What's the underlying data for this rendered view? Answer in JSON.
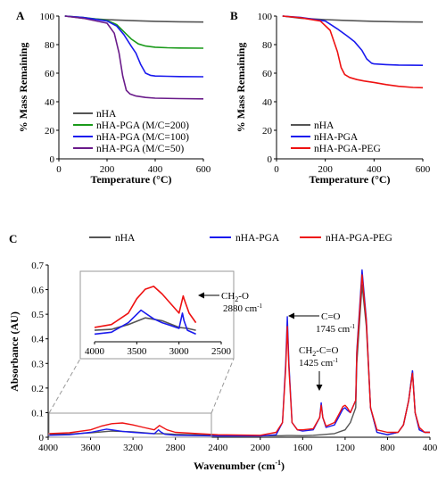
{
  "chart_data": [
    {
      "panel": "A",
      "type": "line",
      "xlabel": "Temperature (°C)",
      "ylabel": "% Mass Remaining",
      "xlim": [
        0,
        600
      ],
      "ylim": [
        0,
        100
      ],
      "xticks": [
        "0",
        "200",
        "400",
        "600"
      ],
      "yticks": [
        "0",
        "20",
        "40",
        "60",
        "80",
        "100"
      ],
      "grid": false,
      "legend": "bottom-left",
      "series": [
        {
          "name": "nHA",
          "color": "#555555",
          "x": [
            25,
            100,
            200,
            300,
            400,
            500,
            600
          ],
          "y": [
            100,
            98.5,
            97.5,
            96.8,
            96.3,
            96,
            95.8
          ]
        },
        {
          "name": "nHA-PGA (M/C=200)",
          "color": "#1a9a1a",
          "x": [
            25,
            100,
            200,
            240,
            270,
            300,
            330,
            360,
            400,
            450,
            500,
            600
          ],
          "y": [
            100,
            99,
            97,
            94,
            89,
            84,
            80.5,
            79,
            78.2,
            77.8,
            77.6,
            77.5
          ]
        },
        {
          "name": "nHA-PGA (M/C=100)",
          "color": "#1a1aee",
          "x": [
            25,
            100,
            200,
            240,
            270,
            300,
            320,
            340,
            360,
            380,
            400,
            450,
            500,
            600
          ],
          "y": [
            100,
            99,
            96.5,
            93,
            87,
            79,
            74,
            66,
            60,
            58.5,
            58,
            57.8,
            57.6,
            57.5
          ]
        },
        {
          "name": "nHA-PGA (M/C=50)",
          "color": "#6a1b8a",
          "x": [
            25,
            100,
            200,
            230,
            250,
            265,
            280,
            295,
            320,
            360,
            400,
            500,
            600
          ],
          "y": [
            100,
            98.5,
            95,
            88,
            74,
            58,
            48,
            45.5,
            44,
            43,
            42.5,
            42.2,
            42
          ]
        }
      ]
    },
    {
      "panel": "B",
      "type": "line",
      "xlabel": "Temperature (°C)",
      "ylabel": "% Mass Remaining",
      "xlim": [
        0,
        600
      ],
      "ylim": [
        0,
        100
      ],
      "xticks": [
        "0",
        "200",
        "400",
        "600"
      ],
      "yticks": [
        "0",
        "20",
        "40",
        "60",
        "80",
        "100"
      ],
      "grid": false,
      "legend": "bottom-left",
      "series": [
        {
          "name": "nHA",
          "color": "#555555",
          "x": [
            25,
            100,
            200,
            300,
            400,
            500,
            600
          ],
          "y": [
            100,
            98.5,
            97.5,
            96.8,
            96.3,
            96,
            95.8
          ]
        },
        {
          "name": "nHA-PGA",
          "color": "#1a1aee",
          "x": [
            25,
            100,
            200,
            250,
            290,
            320,
            350,
            370,
            390,
            400,
            450,
            500,
            600
          ],
          "y": [
            100,
            99,
            96.5,
            91,
            86,
            82,
            76,
            70,
            67,
            66.5,
            66,
            65.7,
            65.5
          ]
        },
        {
          "name": "nHA-PGA-PEG",
          "color": "#ee1111",
          "x": [
            25,
            100,
            180,
            220,
            250,
            265,
            280,
            300,
            330,
            360,
            400,
            450,
            500,
            560,
            600
          ],
          "y": [
            100,
            98.8,
            96.5,
            90,
            75,
            64,
            59,
            57,
            55.5,
            54.5,
            53.5,
            52,
            50.8,
            50,
            49.8
          ]
        }
      ]
    },
    {
      "panel": "C",
      "type": "line",
      "xlabel": "Wavenumber (cm-1)",
      "ylabel": "Absorbance (AU)",
      "xlim": [
        4000,
        400
      ],
      "ylim": [
        0,
        0.7
      ],
      "xticks": [
        "4000",
        "3600",
        "3200",
        "2800",
        "2400",
        "2000",
        "1600",
        "1200",
        "800",
        "400"
      ],
      "yticks": [
        "0",
        "0.1",
        "0.2",
        "0.3",
        "0.4",
        "0.5",
        "0.6",
        "0.7"
      ],
      "grid": false,
      "legend": "top",
      "annotations": {
        "co_label": "C=O",
        "co_value": "1745 cm",
        "ch2co_label": "CH",
        "ch2co_value": "1425 cm",
        "ch2o_label": "CH",
        "ch2o_value": "2880 cm"
      },
      "series": [
        {
          "name": "nHA",
          "color": "#555555",
          "x": [
            4000,
            3800,
            3600,
            3400,
            3200,
            3000,
            2900,
            2800,
            2400,
            2000,
            1800,
            1750,
            1700,
            1600,
            1500,
            1425,
            1300,
            1200,
            1150,
            1100,
            1090,
            1040,
            1000,
            960,
            900,
            800,
            700,
            650,
            600,
            565,
            540,
            500,
            450,
            400
          ],
          "y": [
            0.012,
            0.013,
            0.018,
            0.025,
            0.022,
            0.015,
            0.014,
            0.012,
            0.008,
            0.006,
            0.006,
            0.007,
            0.007,
            0.006,
            0.008,
            0.01,
            0.015,
            0.03,
            0.06,
            0.12,
            0.3,
            0.62,
            0.45,
            0.12,
            0.02,
            0.01,
            0.02,
            0.05,
            0.15,
            0.27,
            0.1,
            0.03,
            0.02,
            0.02
          ]
        },
        {
          "name": "nHA-PGA",
          "color": "#1a1aee",
          "x": [
            4000,
            3800,
            3600,
            3450,
            3400,
            3300,
            3200,
            3100,
            3000,
            2960,
            2940,
            2900,
            2800,
            2400,
            2000,
            1850,
            1790,
            1760,
            1745,
            1730,
            1700,
            1650,
            1600,
            1500,
            1440,
            1425,
            1410,
            1380,
            1300,
            1250,
            1220,
            1200,
            1180,
            1150,
            1100,
            1090,
            1040,
            1000,
            960,
            900,
            800,
            700,
            650,
            600,
            565,
            540,
            500,
            450,
            400
          ],
          "y": [
            0.008,
            0.01,
            0.02,
            0.033,
            0.03,
            0.024,
            0.02,
            0.017,
            0.014,
            0.03,
            0.022,
            0.012,
            0.008,
            0.005,
            0.005,
            0.01,
            0.06,
            0.3,
            0.49,
            0.3,
            0.06,
            0.03,
            0.025,
            0.03,
            0.08,
            0.14,
            0.08,
            0.04,
            0.05,
            0.09,
            0.115,
            0.12,
            0.11,
            0.1,
            0.15,
            0.35,
            0.68,
            0.48,
            0.12,
            0.02,
            0.01,
            0.02,
            0.05,
            0.15,
            0.27,
            0.1,
            0.03,
            0.02,
            0.02
          ]
        },
        {
          "name": "nHA-PGA-PEG",
          "color": "#ee1111",
          "x": [
            4000,
            3800,
            3600,
            3500,
            3400,
            3300,
            3200,
            3100,
            3000,
            2950,
            2940,
            2880,
            2800,
            2400,
            2000,
            1850,
            1790,
            1760,
            1745,
            1730,
            1700,
            1650,
            1600,
            1500,
            1440,
            1425,
            1410,
            1380,
            1300,
            1250,
            1220,
            1200,
            1180,
            1150,
            1100,
            1090,
            1040,
            1000,
            960,
            900,
            800,
            700,
            650,
            600,
            565,
            540,
            500,
            450,
            400
          ],
          "y": [
            0.015,
            0.018,
            0.03,
            0.045,
            0.055,
            0.058,
            0.05,
            0.04,
            0.03,
            0.048,
            0.045,
            0.03,
            0.02,
            0.01,
            0.008,
            0.02,
            0.06,
            0.28,
            0.45,
            0.28,
            0.06,
            0.03,
            0.03,
            0.035,
            0.08,
            0.13,
            0.08,
            0.045,
            0.06,
            0.1,
            0.125,
            0.13,
            0.12,
            0.1,
            0.15,
            0.34,
            0.66,
            0.47,
            0.12,
            0.03,
            0.02,
            0.02,
            0.05,
            0.15,
            0.26,
            0.1,
            0.04,
            0.02,
            0.02
          ]
        }
      ],
      "inset": {
        "xlim": [
          4000,
          2500
        ],
        "ylim": [
          0,
          0.07
        ],
        "xticks": [
          "4000",
          "3500",
          "3000",
          "2500"
        ],
        "source_region": [
          4000,
          2440,
          0,
          0.09
        ]
      }
    }
  ]
}
